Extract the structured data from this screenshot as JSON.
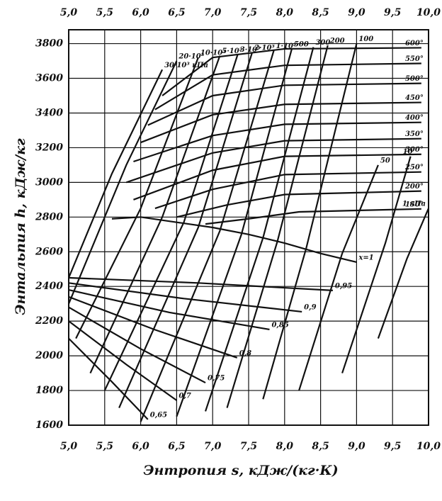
{
  "chart_data": {
    "type": "line",
    "y_label": "Энтальпия h, кДж/кг",
    "x_label": "Энтропия s, кДж/(кг·К)",
    "xlim": [
      5.0,
      10.0
    ],
    "ylim": [
      1600,
      3880
    ],
    "xticks": [
      {
        "value": 5.0,
        "label": "5,0"
      },
      {
        "value": 5.5,
        "label": "5,5"
      },
      {
        "value": 6.0,
        "label": "6,0"
      },
      {
        "value": 6.5,
        "label": "6,5"
      },
      {
        "value": 7.0,
        "label": "7,0"
      },
      {
        "value": 7.5,
        "label": "7,5"
      },
      {
        "value": 8.0,
        "label": "8,0"
      },
      {
        "value": 8.5,
        "label": "8,5"
      },
      {
        "value": 9.0,
        "label": "9,0"
      },
      {
        "value": 9.5,
        "label": "9,5"
      },
      {
        "value": 10.0,
        "label": "10,0"
      }
    ],
    "yticks": [
      1600,
      1800,
      2000,
      2200,
      2400,
      2600,
      2800,
      3000,
      3200,
      3400,
      3600,
      3800
    ],
    "grid": true,
    "color": "#111111",
    "series": [
      {
        "name": "x=1",
        "x": [
          5.6,
          6.0,
          6.5,
          7.0,
          7.5,
          8.0,
          8.5,
          9.0
        ],
        "values": [
          2790,
          2800,
          2770,
          2740,
          2700,
          2650,
          2590,
          2540
        ]
      },
      {
        "name": "0,95",
        "x": [
          5.0,
          6.8,
          8.67
        ],
        "values": [
          2450,
          2420,
          2377
        ]
      },
      {
        "name": "0,9",
        "x": [
          5.0,
          6.6,
          8.24
        ],
        "values": [
          2420,
          2330,
          2254
        ]
      },
      {
        "name": "0,85",
        "x": [
          5.0,
          6.4,
          7.79
        ],
        "values": [
          2380,
          2250,
          2152
        ]
      },
      {
        "name": "0,8",
        "x": [
          5.0,
          6.2,
          7.34
        ],
        "values": [
          2340,
          2150,
          1989
        ]
      },
      {
        "name": "0,75",
        "x": [
          5.0,
          6.0,
          6.9
        ],
        "values": [
          2280,
          2040,
          1845
        ]
      },
      {
        "name": "0,7",
        "x": [
          5.0,
          5.8,
          6.5
        ],
        "values": [
          2200,
          1950,
          1743
        ]
      },
      {
        "name": "0,65",
        "x": [
          5.0,
          5.6,
          6.1
        ],
        "values": [
          2100,
          1850,
          1633
        ]
      },
      {
        "name": "600°",
        "x": [
          6.3,
          7.0,
          8.0,
          9.9
        ],
        "values": [
          3500,
          3720,
          3770,
          3776
        ]
      },
      {
        "name": "550°",
        "x": [
          6.2,
          7.0,
          8.0,
          9.9
        ],
        "values": [
          3420,
          3620,
          3675,
          3686
        ]
      },
      {
        "name": "500°",
        "x": [
          6.1,
          7.0,
          8.0,
          9.9
        ],
        "values": [
          3330,
          3500,
          3560,
          3571
        ]
      },
      {
        "name": "450°",
        "x": [
          6.0,
          7.0,
          8.0,
          9.9
        ],
        "values": [
          3230,
          3390,
          3450,
          3461
        ]
      },
      {
        "name": "400°",
        "x": [
          5.9,
          7.0,
          8.0,
          9.9
        ],
        "values": [
          3120,
          3270,
          3335,
          3346
        ]
      },
      {
        "name": "350°",
        "x": [
          5.8,
          7.0,
          8.0,
          9.9
        ],
        "values": [
          3000,
          3170,
          3240,
          3252
        ]
      },
      {
        "name": "300°",
        "x": [
          5.9,
          7.0,
          8.0,
          9.9
        ],
        "values": [
          2900,
          3070,
          3150,
          3162
        ]
      },
      {
        "name": "250°",
        "x": [
          6.2,
          7.0,
          8.0,
          9.9
        ],
        "values": [
          2850,
          2960,
          3045,
          3060
        ]
      },
      {
        "name": "200°",
        "x": [
          6.5,
          7.2,
          8.0,
          9.9
        ],
        "values": [
          2800,
          2870,
          2930,
          2950
        ]
      },
      {
        "name": "150°",
        "x": [
          6.9,
          7.5,
          8.2,
          9.9
        ],
        "values": [
          2760,
          2790,
          2830,
          2847
        ]
      },
      {
        "name": "30·10³ кПа",
        "x": [
          5.0,
          5.6,
          6.3
        ],
        "values": [
          2450,
          3050,
          3650
        ]
      },
      {
        "name": "20·10³",
        "x": [
          5.0,
          5.8,
          6.5
        ],
        "values": [
          2300,
          3100,
          3700
        ]
      },
      {
        "name": "10·10³",
        "x": [
          5.1,
          6.0,
          6.8
        ],
        "values": [
          2100,
          2850,
          3720
        ]
      },
      {
        "name": "5·10³",
        "x": [
          5.3,
          6.3,
          7.1
        ],
        "values": [
          1900,
          2800,
          3730
        ]
      },
      {
        "name": "3·10³",
        "x": [
          5.5,
          6.6,
          7.35
        ],
        "values": [
          1800,
          2770,
          3740
        ]
      },
      {
        "name": "2·10³",
        "x": [
          5.7,
          6.8,
          7.55
        ],
        "values": [
          1700,
          2740,
          3750
        ]
      },
      {
        "name": "1·10³",
        "x": [
          6.0,
          7.1,
          7.85
        ],
        "values": [
          1620,
          2720,
          3760
        ]
      },
      {
        "name": "500",
        "x": [
          6.5,
          7.4,
          8.1
        ],
        "values": [
          1650,
          2700,
          3770
        ]
      },
      {
        "name": "300",
        "x": [
          6.9,
          7.7,
          8.4
        ],
        "values": [
          1680,
          2680,
          3780
        ]
      },
      {
        "name": "200",
        "x": [
          7.2,
          7.9,
          8.6
        ],
        "values": [
          1700,
          2660,
          3790
        ]
      },
      {
        "name": "100",
        "x": [
          7.7,
          8.3,
          9.0
        ],
        "values": [
          1750,
          2620,
          3800
        ]
      },
      {
        "name": "50",
        "x": [
          8.2,
          8.8,
          9.3
        ],
        "values": [
          1800,
          2590,
          3100
        ]
      },
      {
        "name": "10",
        "x": [
          8.8,
          9.4,
          9.75
        ],
        "values": [
          1900,
          2650,
          3150
        ]
      },
      {
        "name": "1 кПа",
        "x": [
          9.3,
          9.7,
          10.0
        ],
        "values": [
          2100,
          2560,
          2850
        ]
      }
    ]
  }
}
